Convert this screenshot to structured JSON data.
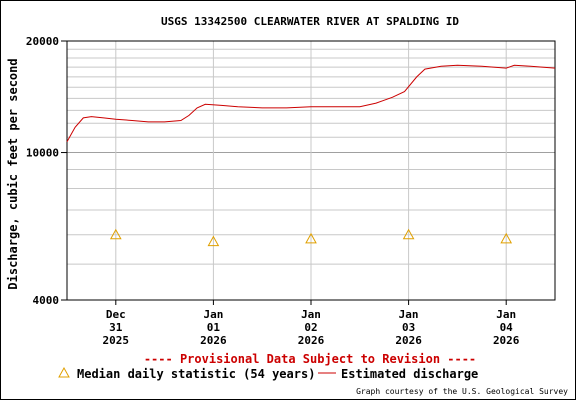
{
  "chart_data": {
    "type": "line",
    "title": "USGS 13342500 CLEARWATER RIVER AT SPALDING ID",
    "ylabel": "Discharge, cubic feet per second",
    "xlabel": "",
    "y_scale": "log",
    "ylim": [
      4000,
      20000
    ],
    "y_tick_labels": [
      "20000",
      "10000",
      "4000"
    ],
    "y_minor_ticks": [
      5000,
      6000,
      7000,
      8000,
      9000,
      11000,
      12000,
      13000,
      14000,
      15000,
      16000,
      17000,
      18000,
      19000
    ],
    "xlim": [
      "2025-12-30T12:00",
      "2026-01-04T12:00"
    ],
    "x_ticks": [
      {
        "month": "Dec",
        "day": "31",
        "year": "2025",
        "x": "2025-12-31"
      },
      {
        "month": "Jan",
        "day": "01",
        "year": "2026",
        "x": "2026-01-01"
      },
      {
        "month": "Jan",
        "day": "02",
        "year": "2026",
        "x": "2026-01-02"
      },
      {
        "month": "Jan",
        "day": "03",
        "year": "2026",
        "x": "2026-01-03"
      },
      {
        "month": "Jan",
        "day": "04",
        "year": "2026",
        "x": "2026-01-04"
      }
    ],
    "grid": true,
    "provisional_note": "---- Provisional Data Subject to Revision ----",
    "series": [
      {
        "name": "Estimated discharge",
        "color": "#cc0000",
        "points": [
          [
            "2025-12-30T12:00",
            10700
          ],
          [
            "2025-12-30T14:00",
            11700
          ],
          [
            "2025-12-30T16:00",
            12400
          ],
          [
            "2025-12-30T18:00",
            12500
          ],
          [
            "2025-12-30T21:00",
            12400
          ],
          [
            "2025-12-31T00:00",
            12300
          ],
          [
            "2025-12-31T04:00",
            12200
          ],
          [
            "2025-12-31T08:00",
            12100
          ],
          [
            "2025-12-31T12:00",
            12100
          ],
          [
            "2025-12-31T16:00",
            12200
          ],
          [
            "2025-12-31T18:00",
            12600
          ],
          [
            "2025-12-31T20:00",
            13200
          ],
          [
            "2025-12-31T22:00",
            13500
          ],
          [
            "2026-01-01T02:00",
            13400
          ],
          [
            "2026-01-01T06:00",
            13300
          ],
          [
            "2026-01-01T12:00",
            13200
          ],
          [
            "2026-01-01T18:00",
            13200
          ],
          [
            "2026-01-02T00:00",
            13300
          ],
          [
            "2026-01-02T06:00",
            13300
          ],
          [
            "2026-01-02T12:00",
            13300
          ],
          [
            "2026-01-02T16:00",
            13600
          ],
          [
            "2026-01-02T20:00",
            14100
          ],
          [
            "2026-01-02T23:00",
            14600
          ],
          [
            "2026-01-03T02:00",
            16000
          ],
          [
            "2026-01-03T04:00",
            16800
          ],
          [
            "2026-01-03T08:00",
            17100
          ],
          [
            "2026-01-03T12:00",
            17200
          ],
          [
            "2026-01-03T18:00",
            17100
          ],
          [
            "2026-01-04T00:00",
            16900
          ],
          [
            "2026-01-04T02:00",
            17200
          ],
          [
            "2026-01-04T06:00",
            17100
          ],
          [
            "2026-01-04T12:00",
            16900
          ]
        ]
      },
      {
        "name": "Median daily statistic (54 years)",
        "color": "#e0a000",
        "marker": "triangle",
        "points": [
          [
            "2025-12-31",
            6000
          ],
          [
            "2026-01-01",
            5750
          ],
          [
            "2026-01-02",
            5850
          ],
          [
            "2026-01-03",
            6000
          ],
          [
            "2026-01-04",
            5850
          ]
        ]
      }
    ],
    "legend": {
      "placement": "bottom",
      "items": [
        {
          "label": "Median daily statistic (54 years)",
          "marker": "triangle",
          "color": "#e0a000"
        },
        {
          "label": "Estimated discharge",
          "marker": "line",
          "color": "#cc0000"
        }
      ]
    },
    "credit": "Graph courtesy of the U.S. Geological Survey"
  }
}
